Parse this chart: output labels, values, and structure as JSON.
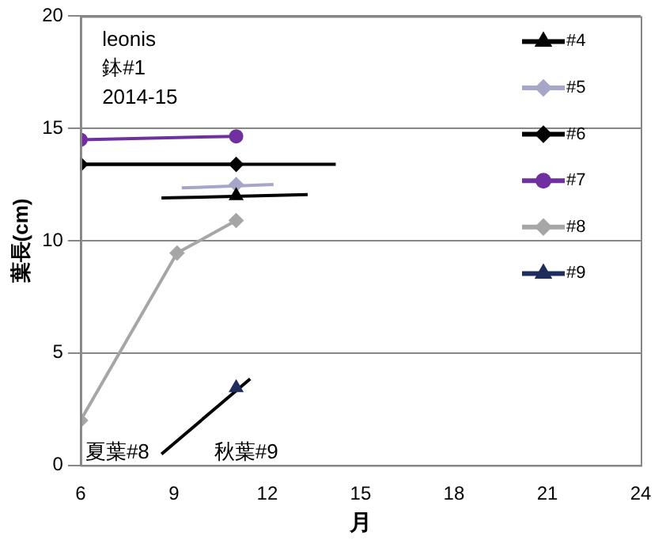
{
  "chart_data": {
    "type": "line",
    "xlabel": "月",
    "ylabel": "葉長(cm)",
    "xlim": [
      6,
      24
    ],
    "xticks": [
      6,
      9,
      12,
      15,
      18,
      21,
      24
    ],
    "ylim": [
      0,
      20
    ],
    "yticks": [
      0,
      5,
      10,
      15,
      20
    ],
    "grid": "y",
    "legend": "top right",
    "annotations": [
      "leonis",
      "鉢#1",
      "2014-15",
      "夏葉#8",
      "秋葉#9"
    ],
    "series": [
      {
        "name": "#4",
        "color": "#000000",
        "marker": "triangle",
        "x": [
          11
        ],
        "values": [
          12.0
        ]
      },
      {
        "name": "#5",
        "color": "#a6a6c8",
        "marker": "diamond",
        "x": [
          11
        ],
        "values": [
          12.5
        ]
      },
      {
        "name": "#6",
        "color": "#000000",
        "marker": "diamond",
        "x": [
          6,
          11
        ],
        "values": [
          13.4,
          13.4
        ]
      },
      {
        "name": "#7",
        "color": "#7030a0",
        "marker": "circle",
        "x": [
          6,
          11
        ],
        "values": [
          14.5,
          14.65
        ]
      },
      {
        "name": "#8",
        "color": "#a6a6a6",
        "marker": "diamond",
        "x": [
          6,
          9.1,
          11
        ],
        "values": [
          2.0,
          9.45,
          10.9
        ]
      },
      {
        "name": "#9",
        "color": "#1f2d5c",
        "marker": "triangle",
        "x": [
          11
        ],
        "values": [
          3.45
        ]
      },
      {
        "color": "#000000",
        "marker": "none",
        "x": [
          6,
          14.2
        ],
        "values": [
          13.4,
          13.4
        ]
      },
      {
        "color": "#a6a6c8",
        "marker": "none",
        "x": [
          9.25,
          12.2
        ],
        "values": [
          12.35,
          12.5
        ]
      },
      {
        "color": "#000000",
        "marker": "none",
        "x": [
          8.6,
          13.3
        ],
        "values": [
          11.9,
          12.05
        ]
      },
      {
        "color": "#000000",
        "marker": "none",
        "x": [
          8.6,
          11.45
        ],
        "values": [
          0.5,
          3.85
        ]
      }
    ]
  }
}
